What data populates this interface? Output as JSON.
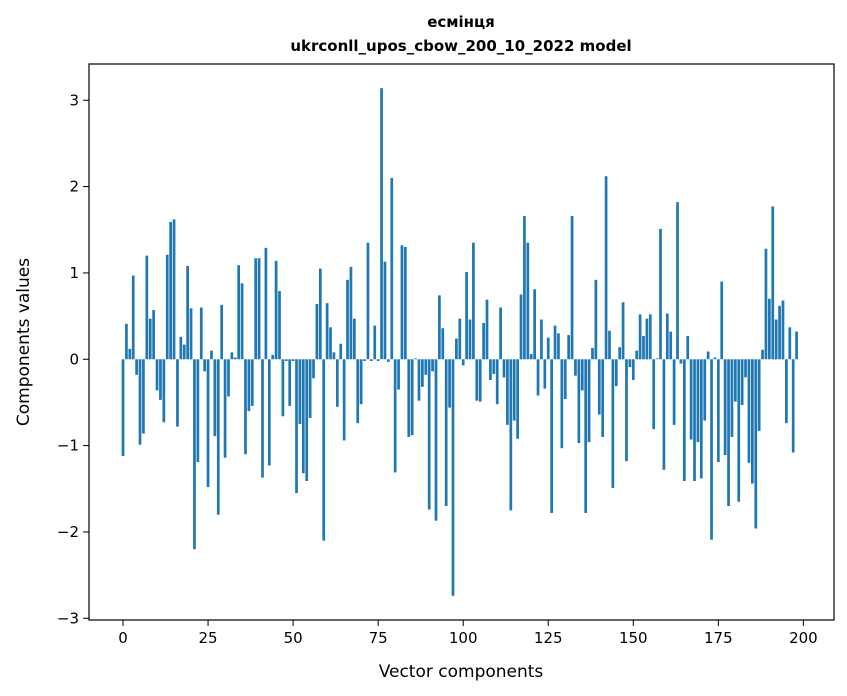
{
  "chart_data": {
    "type": "bar",
    "title_line1": "есмінця",
    "title_line2": "ukrconll_upos_cbow_200_10_2022 model",
    "xlabel": "Vector components",
    "ylabel": "Components values",
    "xlim": [
      -10,
      209
    ],
    "ylim": [
      -3.02,
      3.42
    ],
    "x_ticks": [
      0,
      25,
      50,
      75,
      100,
      125,
      150,
      175,
      200
    ],
    "y_ticks": [
      -3,
      -2,
      -1,
      0,
      1,
      2,
      3
    ],
    "bar_color": "#1f77b4",
    "grid": false,
    "legend": "none",
    "values": [
      -1.12,
      0.41,
      0.12,
      0.97,
      -0.18,
      -0.99,
      -0.86,
      1.2,
      0.47,
      0.57,
      -0.36,
      -0.47,
      -0.73,
      1.21,
      1.59,
      1.62,
      -0.78,
      0.26,
      0.17,
      1.08,
      0.59,
      -2.2,
      -1.19,
      0.6,
      -0.14,
      -1.48,
      0.1,
      -0.89,
      -1.8,
      0.63,
      -1.14,
      -0.43,
      0.08,
      0.02,
      1.09,
      0.88,
      -1.1,
      -0.6,
      -0.54,
      1.17,
      1.17,
      -1.37,
      1.29,
      -1.23,
      0.05,
      1.14,
      0.79,
      -0.66,
      -0.02,
      -0.54,
      -0.02,
      -1.55,
      -0.75,
      -1.32,
      -1.41,
      -0.68,
      -0.22,
      0.64,
      1.05,
      -2.1,
      0.65,
      0.37,
      0.08,
      -0.55,
      0.18,
      -0.94,
      0.92,
      1.07,
      0.47,
      -0.74,
      -0.52,
      -0.02,
      1.35,
      -0.02,
      0.39,
      -0.02,
      3.14,
      1.13,
      -0.03,
      2.1,
      -1.31,
      -0.35,
      1.32,
      1.3,
      -0.9,
      -0.88,
      0.01,
      -0.48,
      -0.32,
      -0.18,
      -1.74,
      -0.14,
      -1.87,
      0.74,
      0.36,
      -1.7,
      -0.56,
      -2.74,
      0.24,
      0.47,
      -0.07,
      1.01,
      0.46,
      1.35,
      -0.48,
      -0.49,
      0.42,
      0.69,
      -0.24,
      -0.17,
      -0.52,
      0.6,
      -0.21,
      -0.76,
      -1.75,
      -0.71,
      -0.92,
      0.75,
      1.66,
      1.35,
      0.06,
      0.81,
      -0.42,
      0.46,
      -0.34,
      0.25,
      -1.78,
      0.39,
      0.3,
      -1.03,
      -0.46,
      0.28,
      1.66,
      -0.19,
      -0.97,
      -0.36,
      -1.78,
      -0.96,
      0.13,
      0.92,
      -0.64,
      -0.9,
      2.12,
      0.33,
      -1.49,
      -0.31,
      0.14,
      0.66,
      -1.18,
      -0.09,
      -0.24,
      0.1,
      0.52,
      0.27,
      0.47,
      0.52,
      -0.81,
      0.01,
      1.51,
      -1.28,
      0.53,
      0.32,
      -0.76,
      1.82,
      -0.05,
      -1.41,
      0.27,
      -0.93,
      -1.41,
      -0.96,
      -1.38,
      -0.71,
      0.09,
      -2.09,
      0.02,
      -1.19,
      0.9,
      -1.11,
      -1.7,
      -0.9,
      -0.49,
      -1.65,
      -0.53,
      -0.21,
      -1.2,
      -1.44,
      -1.96,
      -0.83,
      0.11,
      1.28,
      0.7,
      1.77,
      0.46,
      0.62,
      0.68,
      -0.74,
      0.37,
      -1.08,
      0.32
    ]
  }
}
